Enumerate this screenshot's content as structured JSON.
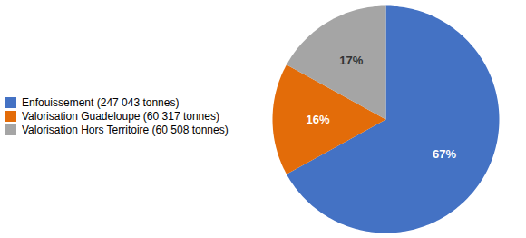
{
  "chart_data": {
    "type": "pie",
    "categories": [
      "Enfouissement (247 043 tonnes)",
      "Valorisation Guadeloupe (60 317 tonnes)",
      "Valorisation Hors Territoire (60 508 tonnes)"
    ],
    "values": [
      67,
      16,
      17
    ],
    "value_labels": [
      "67%",
      "16%",
      "17%"
    ],
    "colors": [
      "#4472C4",
      "#E36C09",
      "#A5A5A5"
    ],
    "data_labels": true,
    "legend": "left"
  }
}
